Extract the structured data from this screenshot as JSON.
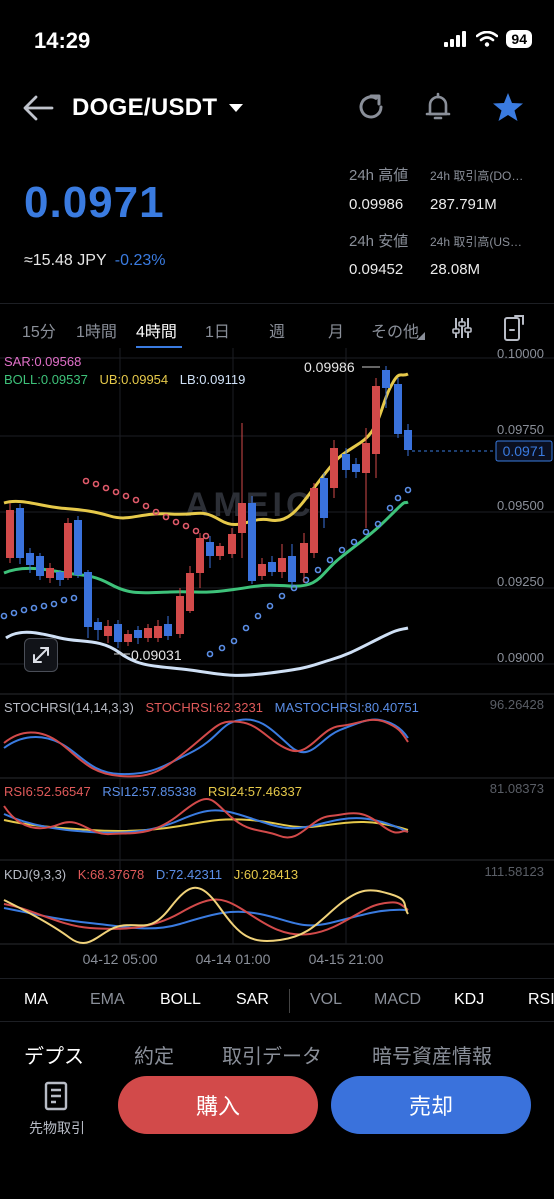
{
  "status": {
    "time": "14:29",
    "battery": "94"
  },
  "header": {
    "pair": "DOGE/USDT"
  },
  "price": {
    "last": "0.0971",
    "approx": "≈15.48",
    "currency": "JPY",
    "change": "-0.23%",
    "high_label": "24h 高値",
    "high_value": "0.09986",
    "low_label": "24h 安値",
    "low_value": "0.09452",
    "vol_base_label": "24h 取引高(DO…",
    "vol_base_value": "287.791M",
    "vol_quote_label": "24h 取引高(US…",
    "vol_quote_value": "28.08M"
  },
  "timeframes": [
    "15分",
    "1時間",
    "4時間",
    "1日",
    "週",
    "月",
    "その他"
  ],
  "active_timeframe": "4時間",
  "chart": {
    "legend": {
      "sar": "SAR:0.09568",
      "boll": "BOLL:0.09537",
      "ub": "UB:0.09954",
      "lb": "LB:0.09119"
    },
    "watermark": "AMEIC",
    "high_marker": "0.09986",
    "low_marker": "0.09031",
    "current_price_tag": "0.0971",
    "price_axis": [
      "0.10000",
      "0.09750",
      "0.09500",
      "0.09250",
      "0.09000"
    ],
    "stochrsi": {
      "title": "STOCHRSI(14,14,3,3)",
      "stoch": "STOCHRSI:62.3231",
      "ma": "MASTOCHRSI:80.40751",
      "max": "96.26428"
    },
    "rsi": {
      "rsi6": "RSI6:52.56547",
      "rsi12": "RSI12:57.85338",
      "rsi24": "RSI24:57.46337",
      "max": "81.08373"
    },
    "kdj": {
      "title": "KDJ(9,3,3)",
      "k": "K:68.37678",
      "d": "D:72.42311",
      "j": "J:60.28413",
      "max": "111.58123"
    },
    "time_axis": [
      "04-12 05:00",
      "04-14 01:00",
      "04-15 21:00"
    ]
  },
  "indicator_tabs": [
    "MA",
    "EMA",
    "BOLL",
    "SAR",
    "VOL",
    "MACD",
    "KDJ",
    "RSI"
  ],
  "bottom_tabs": [
    "デプス",
    "約定",
    "取引データ",
    "暗号資産情報"
  ],
  "actions": {
    "futures": "先物取引",
    "buy": "購入",
    "sell": "売却"
  },
  "colors": {
    "up": "#d24a4a",
    "down": "#3a72dc",
    "accent": "#3a7be0",
    "boll_mid": "#3ec27a",
    "boll_ub": "#e6c94a",
    "boll_lb": "#cfe0f5",
    "sar": "#e05a6a"
  }
}
